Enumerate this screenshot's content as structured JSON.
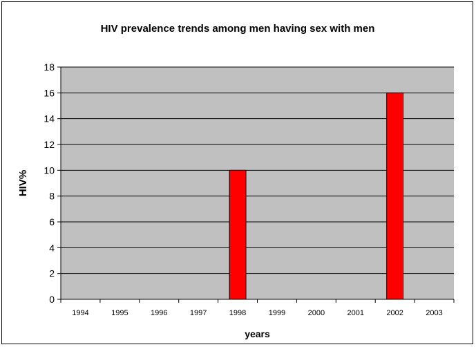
{
  "chart_data": {
    "type": "bar",
    "title": "HIV prevalence trends among men having sex with men",
    "xlabel": "years",
    "ylabel": "HIV%",
    "categories": [
      "1994",
      "1995",
      "1996",
      "1997",
      "1998",
      "1999",
      "2000",
      "2001",
      "2002",
      "2003"
    ],
    "values": [
      0,
      0,
      0,
      0,
      10,
      0,
      0,
      0,
      16,
      0
    ],
    "ylim": [
      0,
      18
    ],
    "yticks": [
      0,
      2,
      4,
      6,
      8,
      10,
      12,
      14,
      16,
      18
    ],
    "grid": true,
    "legend": "none",
    "colors": {
      "bar": "#ff0000",
      "plot_background": "#c0c0c0",
      "grid": "#000000"
    }
  }
}
